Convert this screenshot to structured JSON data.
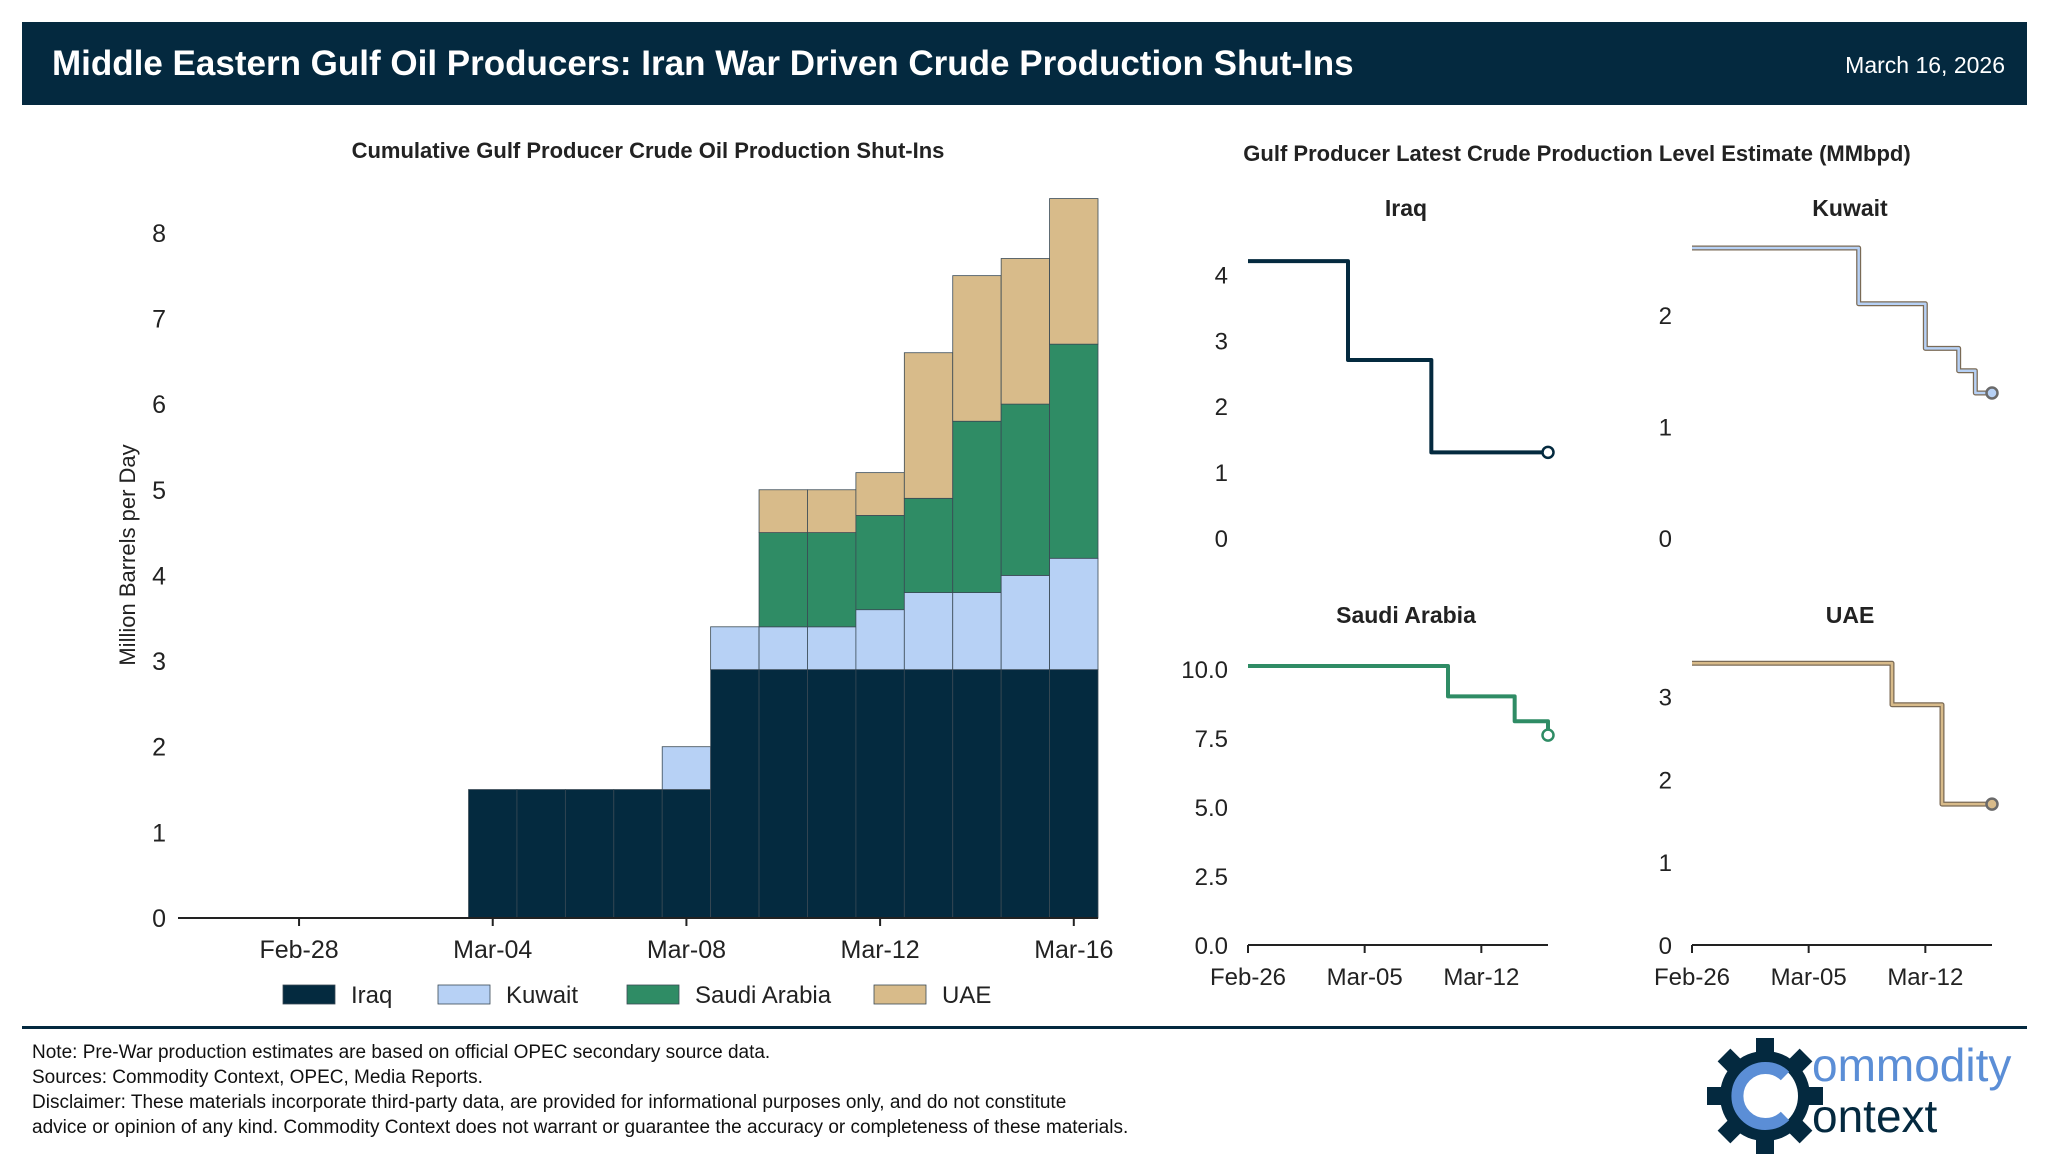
{
  "header": {
    "title": "Middle Eastern Gulf Oil Producers: Iran War Driven Crude Production Shut-Ins",
    "date": "March 16, 2026"
  },
  "colors": {
    "header_bg": "#04293f",
    "Iraq": "#042a3f",
    "Kuwait": "#b7d1f5",
    "Saudi Arabia": "#2f8c65",
    "UAE": "#d8bb8a"
  },
  "chart_data": [
    {
      "type": "bar",
      "stacked": true,
      "title": "Cumulative Gulf Producer Crude Oil Production Shut-Ins",
      "ylabel": "Million Barrels per Day",
      "ylim": [
        0,
        8.5
      ],
      "yticks": [
        "0",
        "1",
        "2",
        "3",
        "4",
        "5",
        "6",
        "7",
        "8"
      ],
      "xtick_labels": [
        "Feb-28",
        "Mar-04",
        "Mar-08",
        "Mar-12",
        "Mar-16"
      ],
      "categories": [
        "Feb-26",
        "Feb-27",
        "Feb-28",
        "Mar-01",
        "Mar-02",
        "Mar-03",
        "Mar-04",
        "Mar-05",
        "Mar-06",
        "Mar-07",
        "Mar-08",
        "Mar-09",
        "Mar-10",
        "Mar-11",
        "Mar-12",
        "Mar-13",
        "Mar-14",
        "Mar-15",
        "Mar-16"
      ],
      "series": [
        {
          "name": "Iraq",
          "values": [
            0,
            0,
            0,
            0,
            0,
            0,
            1.5,
            1.5,
            1.5,
            1.5,
            1.5,
            2.9,
            2.9,
            2.9,
            2.9,
            2.9,
            2.9,
            2.9,
            2.9
          ]
        },
        {
          "name": "Kuwait",
          "values": [
            0,
            0,
            0,
            0,
            0,
            0,
            0,
            0,
            0,
            0,
            0.5,
            0.5,
            0.5,
            0.5,
            0.7,
            0.9,
            0.9,
            1.1,
            1.3
          ]
        },
        {
          "name": "Saudi Arabia",
          "values": [
            0,
            0,
            0,
            0,
            0,
            0,
            0,
            0,
            0,
            0,
            0,
            0,
            1.1,
            1.1,
            1.1,
            1.1,
            2.0,
            2.0,
            2.5
          ]
        },
        {
          "name": "UAE",
          "values": [
            0,
            0,
            0,
            0,
            0,
            0,
            0,
            0,
            0,
            0,
            0,
            0,
            0.5,
            0.5,
            0.5,
            1.7,
            1.7,
            1.7,
            1.7
          ]
        }
      ],
      "legend": [
        "Iraq",
        "Kuwait",
        "Saudi Arabia",
        "UAE"
      ],
      "legend_position": "bottom"
    },
    {
      "type": "line",
      "group_title": "Gulf Producer Latest Crude Production Level Estimate (MMbpd)",
      "xtick_labels": [
        "Feb-26",
        "Mar-05",
        "Mar-12"
      ],
      "x": [
        "Feb-26",
        "Feb-27",
        "Feb-28",
        "Mar-01",
        "Mar-02",
        "Mar-03",
        "Mar-04",
        "Mar-05",
        "Mar-06",
        "Mar-07",
        "Mar-08",
        "Mar-09",
        "Mar-10",
        "Mar-11",
        "Mar-12",
        "Mar-13",
        "Mar-14",
        "Mar-15",
        "Mar-16"
      ],
      "panels": [
        {
          "title": "Iraq",
          "ylim": [
            0,
            4.4
          ],
          "yticks": [
            "0",
            "1",
            "2",
            "3",
            "4"
          ],
          "values": [
            4.2,
            4.2,
            4.2,
            4.2,
            4.2,
            4.2,
            2.7,
            2.7,
            2.7,
            2.7,
            2.7,
            1.3,
            1.3,
            1.3,
            1.3,
            1.3,
            1.3,
            1.3,
            1.3
          ]
        },
        {
          "title": "Kuwait",
          "ylim": [
            0,
            2.6
          ],
          "yticks": [
            "0",
            "1",
            "2"
          ],
          "values": [
            2.6,
            2.6,
            2.6,
            2.6,
            2.6,
            2.6,
            2.6,
            2.6,
            2.6,
            2.6,
            2.1,
            2.1,
            2.1,
            2.1,
            1.7,
            1.7,
            1.5,
            1.3,
            1.3
          ]
        },
        {
          "title": "Saudi Arabia",
          "ylim": [
            0,
            10.5
          ],
          "yticks": [
            "0.0",
            "2.5",
            "5.0",
            "7.5",
            "10.0"
          ],
          "values": [
            10.1,
            10.1,
            10.1,
            10.1,
            10.1,
            10.1,
            10.1,
            10.1,
            10.1,
            10.1,
            10.1,
            10.1,
            9.0,
            9.0,
            9.0,
            9.0,
            8.1,
            8.1,
            7.6
          ]
        },
        {
          "title": "UAE",
          "ylim": [
            0,
            3.5
          ],
          "yticks": [
            "0",
            "1",
            "2",
            "3"
          ],
          "values": [
            3.4,
            3.4,
            3.4,
            3.4,
            3.4,
            3.4,
            3.4,
            3.4,
            3.4,
            3.4,
            3.4,
            3.4,
            2.9,
            2.9,
            2.9,
            1.7,
            1.7,
            1.7,
            1.7
          ]
        }
      ]
    }
  ],
  "footer": {
    "note": "Note: Pre-War production estimates are based on official OPEC secondary source data.",
    "sources": "Sources: Commodity Context, OPEC, Media Reports.",
    "disclaimer_1": "Disclaimer: These materials incorporate third-party data, are provided for informational purposes only, and do not constitute",
    "disclaimer_2": "advice or opinion of any kind. Commodity Context does not warrant or guarantee the accuracy or completeness of these materials."
  },
  "logo": {
    "line1": "ommodity",
    "line2": "ontext",
    "icon": "gear-c-icon"
  }
}
